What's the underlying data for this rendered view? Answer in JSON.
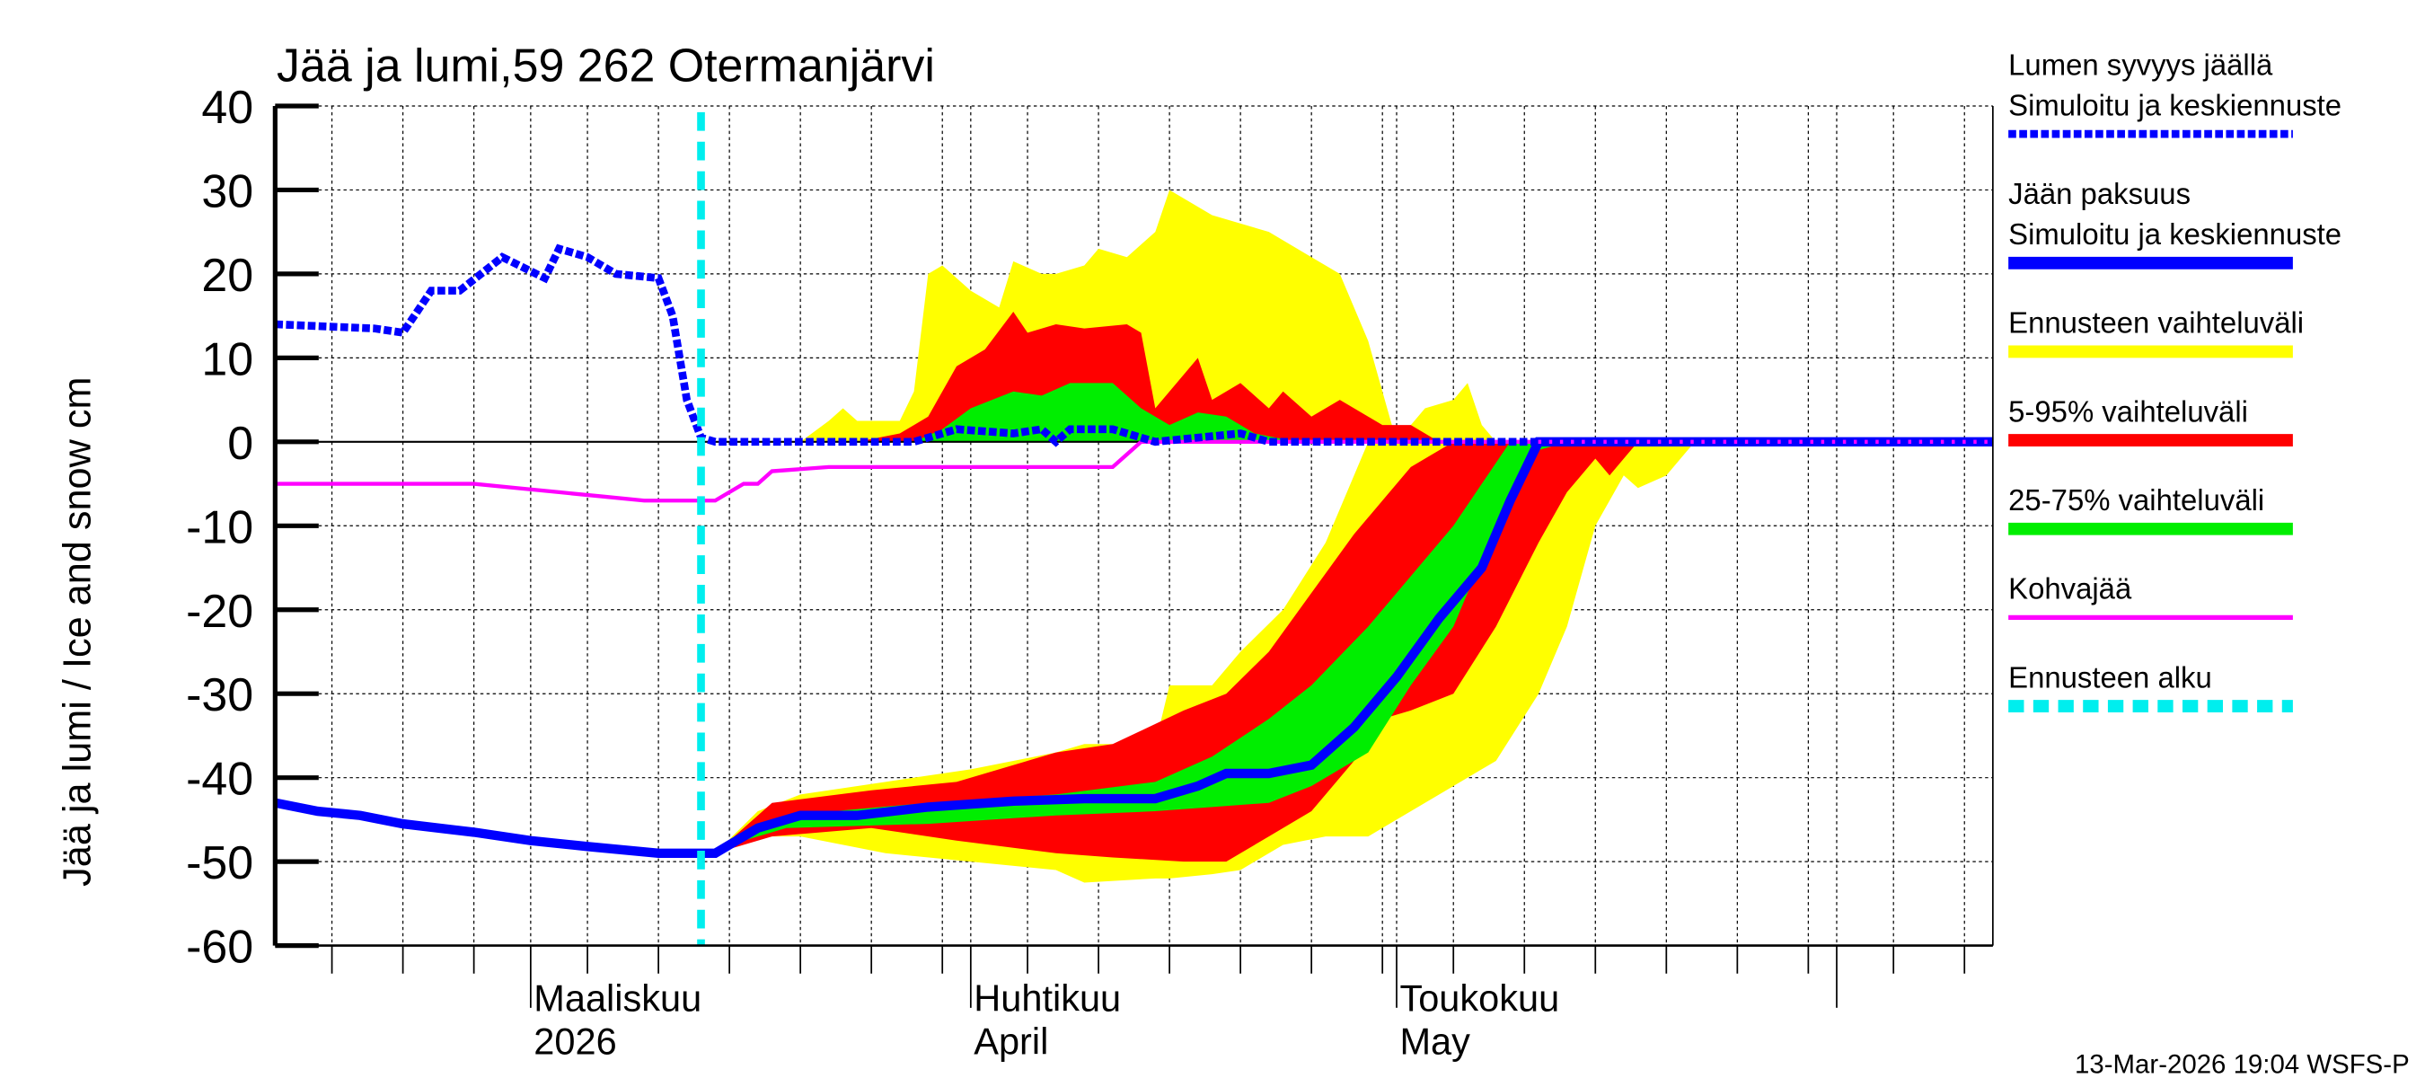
{
  "chart_data": {
    "type": "area",
    "title": "Jää ja lumi,59 262 Otermanjärvi",
    "ylabel": "Jää ja lumi / Ice and snow    cm",
    "ylim": [
      -60,
      40
    ],
    "yticks": [
      40,
      30,
      20,
      10,
      0,
      -10,
      -20,
      -30,
      -40,
      -50,
      -60
    ],
    "xlim": [
      "2026-02-11",
      "2026-06-12"
    ],
    "month_labels": [
      {
        "date": "2026-03-01",
        "line1": "Maaliskuu",
        "line2": "2026"
      },
      {
        "date": "2026-04-01",
        "line1": "Huhtikuu",
        "line2": "April"
      },
      {
        "date": "2026-05-01",
        "line1": "Toukokuu",
        "line2": "May"
      }
    ],
    "grid": true,
    "legend_position": "right",
    "forecast_start": "2026-03-13",
    "timestamp": "13-Mar-2026 19:04 WSFS-P",
    "colors": {
      "snow": "#0000ff",
      "ice": "#0000ff",
      "range": "#ffff00",
      "p5_95": "#ff0000",
      "p25_75": "#00ee00",
      "slush": "#ff00ff",
      "forecast": "#00eeee"
    },
    "legend": [
      {
        "line1": "Lumen syvyys jäällä",
        "line2": "Simuloitu ja keskiennuste",
        "key": "snow",
        "style": "dotted"
      },
      {
        "line1": "Jään paksuus",
        "line2": "Simuloitu ja keskiennuste",
        "key": "ice",
        "style": "solid"
      },
      {
        "line1": "Ennusteen vaihteluväli",
        "key": "range",
        "style": "solid"
      },
      {
        "line1": "5-95% vaihteluväli",
        "key": "p5_95",
        "style": "solid"
      },
      {
        "line1": "25-75% vaihteluväli",
        "key": "p25_75",
        "style": "solid"
      },
      {
        "line1": "Kohvajää",
        "key": "slush",
        "style": "thin"
      },
      {
        "line1": "Ennusteen alku",
        "key": "forecast",
        "style": "dashed"
      }
    ],
    "snow_depth": [
      [
        "2026-02-11",
        14
      ],
      [
        "2026-02-18",
        13.5
      ],
      [
        "2026-02-20",
        13
      ],
      [
        "2026-02-22",
        18
      ],
      [
        "2026-02-24",
        18
      ],
      [
        "2026-02-27",
        22
      ],
      [
        "2026-03-02",
        19.5
      ],
      [
        "2026-03-03",
        23
      ],
      [
        "2026-03-05",
        22
      ],
      [
        "2026-03-07",
        20
      ],
      [
        "2026-03-10",
        19.5
      ],
      [
        "2026-03-11",
        15
      ],
      [
        "2026-03-12",
        5
      ],
      [
        "2026-03-13",
        0.5
      ],
      [
        "2026-03-14",
        0
      ],
      [
        "2026-03-28",
        0
      ],
      [
        "2026-03-31",
        1.5
      ],
      [
        "2026-04-04",
        1
      ],
      [
        "2026-04-06",
        1.5
      ],
      [
        "2026-04-07",
        0
      ],
      [
        "2026-04-08",
        1.5
      ],
      [
        "2026-04-11",
        1.5
      ],
      [
        "2026-04-14",
        0
      ],
      [
        "2026-04-20",
        1
      ],
      [
        "2026-04-22",
        0
      ],
      [
        "2026-06-12",
        0
      ]
    ],
    "slush_ice": [
      [
        "2026-02-11",
        -5
      ],
      [
        "2026-02-25",
        -5
      ],
      [
        "2026-02-28",
        -5.5
      ],
      [
        "2026-03-03",
        -6
      ],
      [
        "2026-03-06",
        -6.5
      ],
      [
        "2026-03-09",
        -7
      ],
      [
        "2026-03-14",
        -7
      ],
      [
        "2026-03-16",
        -5
      ],
      [
        "2026-03-17",
        -5
      ],
      [
        "2026-03-18",
        -3.5
      ],
      [
        "2026-03-22",
        -3
      ],
      [
        "2026-04-11",
        -3
      ],
      [
        "2026-04-13",
        0
      ],
      [
        "2026-06-12",
        0
      ]
    ],
    "ice_thickness": [
      [
        "2026-02-11",
        -43
      ],
      [
        "2026-02-14",
        -44
      ],
      [
        "2026-02-17",
        -44.5
      ],
      [
        "2026-02-20",
        -45.5
      ],
      [
        "2026-02-25",
        -46.5
      ],
      [
        "2026-03-01",
        -47.5
      ],
      [
        "2026-03-05",
        -48.2
      ],
      [
        "2026-03-10",
        -49
      ],
      [
        "2026-03-14",
        -49
      ],
      [
        "2026-03-15",
        -48
      ],
      [
        "2026-03-17",
        -46
      ],
      [
        "2026-03-20",
        -44.5
      ],
      [
        "2026-03-24",
        -44.5
      ],
      [
        "2026-03-29",
        -43.5
      ],
      [
        "2026-04-04",
        -42.8
      ],
      [
        "2026-04-09",
        -42.5
      ],
      [
        "2026-04-14",
        -42.5
      ],
      [
        "2026-04-17",
        -41
      ],
      [
        "2026-04-19",
        -39.5
      ],
      [
        "2026-04-22",
        -39.5
      ],
      [
        "2026-04-25",
        -38.5
      ],
      [
        "2026-04-28",
        -34
      ],
      [
        "2026-05-01",
        -28
      ],
      [
        "2026-05-04",
        -21
      ],
      [
        "2026-05-07",
        -15
      ],
      [
        "2026-05-09",
        -7
      ],
      [
        "2026-05-11",
        0
      ],
      [
        "2026-06-12",
        0
      ]
    ],
    "snow_range_upper": [
      [
        "2026-03-20",
        0
      ],
      [
        "2026-03-22",
        2.5
      ],
      [
        "2026-03-23",
        4
      ],
      [
        "2026-03-24",
        2.5
      ],
      [
        "2026-03-27",
        2.5
      ],
      [
        "2026-03-28",
        6
      ],
      [
        "2026-03-29",
        20
      ],
      [
        "2026-03-30",
        21
      ],
      [
        "2026-04-01",
        18
      ],
      [
        "2026-04-03",
        16
      ],
      [
        "2026-04-04",
        21.5
      ],
      [
        "2026-04-06",
        20
      ],
      [
        "2026-04-07",
        20
      ],
      [
        "2026-04-09",
        21
      ],
      [
        "2026-04-10",
        23
      ],
      [
        "2026-04-12",
        22
      ],
      [
        "2026-04-14",
        25
      ],
      [
        "2026-04-15",
        30
      ],
      [
        "2026-04-18",
        27
      ],
      [
        "2026-04-22",
        25
      ],
      [
        "2026-04-25",
        22
      ],
      [
        "2026-04-27",
        20
      ],
      [
        "2026-04-29",
        12
      ],
      [
        "2026-05-01",
        0
      ],
      [
        "2026-05-03",
        4
      ],
      [
        "2026-05-05",
        5
      ],
      [
        "2026-05-06",
        7
      ],
      [
        "2026-05-07",
        2
      ],
      [
        "2026-05-08",
        0
      ]
    ],
    "snow_p5_95_upper": [
      [
        "2026-03-24",
        0
      ],
      [
        "2026-03-27",
        1
      ],
      [
        "2026-03-29",
        3
      ],
      [
        "2026-03-31",
        9
      ],
      [
        "2026-04-02",
        11
      ],
      [
        "2026-04-04",
        15.5
      ],
      [
        "2026-04-05",
        13
      ],
      [
        "2026-04-07",
        14
      ],
      [
        "2026-04-09",
        13.5
      ],
      [
        "2026-04-12",
        14
      ],
      [
        "2026-04-13",
        13
      ],
      [
        "2026-04-14",
        4
      ],
      [
        "2026-04-17",
        10
      ],
      [
        "2026-04-18",
        5
      ],
      [
        "2026-04-20",
        7
      ],
      [
        "2026-04-22",
        4
      ],
      [
        "2026-04-23",
        6
      ],
      [
        "2026-04-25",
        3
      ],
      [
        "2026-04-27",
        5
      ],
      [
        "2026-04-30",
        2
      ],
      [
        "2026-05-02",
        2
      ],
      [
        "2026-05-04",
        0
      ]
    ],
    "snow_p25_75_upper": [
      [
        "2026-03-28",
        0
      ],
      [
        "2026-03-30",
        1.5
      ],
      [
        "2026-04-01",
        4
      ],
      [
        "2026-04-04",
        6
      ],
      [
        "2026-04-06",
        5.5
      ],
      [
        "2026-04-08",
        7
      ],
      [
        "2026-04-11",
        7
      ],
      [
        "2026-04-13",
        4
      ],
      [
        "2026-04-15",
        2
      ],
      [
        "2026-04-17",
        3.5
      ],
      [
        "2026-04-19",
        3
      ],
      [
        "2026-04-21",
        1
      ],
      [
        "2026-04-24",
        0
      ]
    ],
    "ice_range": [
      [
        "2026-03-14",
        -49,
        -49
      ],
      [
        "2026-03-17",
        -44,
        -47
      ],
      [
        "2026-03-20",
        -42,
        -47
      ],
      [
        "2026-03-26",
        -40.5,
        -49
      ],
      [
        "2026-04-01",
        -39,
        -50
      ],
      [
        "2026-04-07",
        -37,
        -51
      ],
      [
        "2026-04-09",
        -36,
        -52.5
      ],
      [
        "2026-04-14",
        -36,
        -52
      ],
      [
        "2026-04-15",
        -29,
        -52
      ],
      [
        "2026-04-18",
        -29,
        -51.5
      ],
      [
        "2026-04-20",
        -25,
        -51
      ],
      [
        "2026-04-23",
        -20,
        -48
      ],
      [
        "2026-04-26",
        -12,
        -47
      ],
      [
        "2026-04-28",
        -4,
        -47
      ],
      [
        "2026-04-29",
        0,
        -47
      ],
      [
        "2026-05-01",
        0,
        -45
      ],
      [
        "2026-05-04",
        0,
        -42
      ],
      [
        "2026-05-08",
        0,
        -38
      ],
      [
        "2026-05-11",
        0,
        -30
      ],
      [
        "2026-05-13",
        0,
        -22
      ],
      [
        "2026-05-15",
        0,
        -10
      ],
      [
        "2026-05-17",
        0,
        -4
      ],
      [
        "2026-05-18",
        0,
        -5.5
      ],
      [
        "2026-05-20",
        0,
        -4
      ],
      [
        "2026-05-22",
        0,
        0
      ]
    ],
    "ice_p5_95": [
      [
        "2026-03-14",
        -49,
        -49
      ],
      [
        "2026-03-18",
        -43,
        -47
      ],
      [
        "2026-03-25",
        -41.5,
        -46
      ],
      [
        "2026-03-31",
        -40.5,
        -47.5
      ],
      [
        "2026-04-07",
        -37,
        -49
      ],
      [
        "2026-04-11",
        -36,
        -49.5
      ],
      [
        "2026-04-16",
        -32,
        -50
      ],
      [
        "2026-04-19",
        -30,
        -50
      ],
      [
        "2026-04-22",
        -25,
        -47
      ],
      [
        "2026-04-25",
        -18,
        -44
      ],
      [
        "2026-04-28",
        -11,
        -38
      ],
      [
        "2026-04-30",
        -7,
        -33
      ],
      [
        "2026-05-02",
        -3,
        -32
      ],
      [
        "2026-05-05",
        0,
        -30
      ],
      [
        "2026-05-08",
        0,
        -22
      ],
      [
        "2026-05-11",
        0,
        -12
      ],
      [
        "2026-05-13",
        0,
        -6
      ],
      [
        "2026-05-15",
        0,
        -2
      ],
      [
        "2026-05-16",
        0,
        -4
      ],
      [
        "2026-05-18",
        0,
        0
      ]
    ],
    "ice_p25_75": [
      [
        "2026-03-15",
        -48,
        -48
      ],
      [
        "2026-03-19",
        -44.5,
        -46
      ],
      [
        "2026-03-29",
        -43,
        -45.5
      ],
      [
        "2026-04-07",
        -42,
        -44.5
      ],
      [
        "2026-04-14",
        -40.5,
        -44
      ],
      [
        "2026-04-18",
        -37.5,
        -43.5
      ],
      [
        "2026-04-22",
        -33,
        -43
      ],
      [
        "2026-04-25",
        -29,
        -41
      ],
      [
        "2026-04-29",
        -22,
        -37
      ],
      [
        "2026-05-02",
        -16,
        -29
      ],
      [
        "2026-05-05",
        -10,
        -22
      ],
      [
        "2026-05-07",
        -5,
        -14
      ],
      [
        "2026-05-09",
        0,
        -7
      ],
      [
        "2026-05-11",
        0,
        -1
      ],
      [
        "2026-05-13",
        0,
        0
      ]
    ]
  }
}
